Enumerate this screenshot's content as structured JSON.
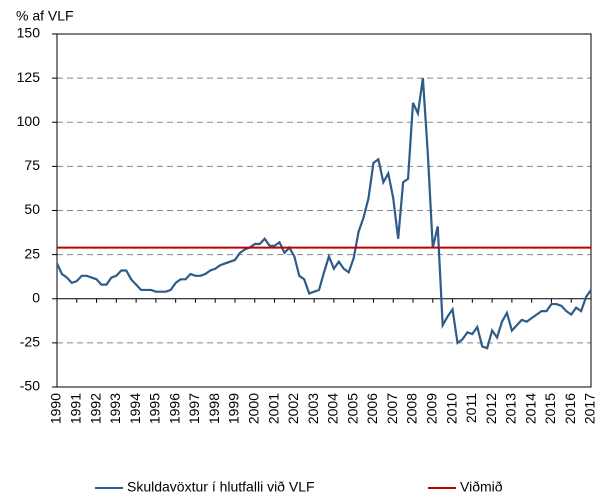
{
  "chart_data": {
    "type": "line",
    "y_label": "% af VLF",
    "xlim": [
      1990,
      2017
    ],
    "xticks": [
      1990,
      1991,
      1992,
      1993,
      1994,
      1995,
      1996,
      1997,
      1998,
      1999,
      2000,
      2001,
      2002,
      2003,
      2004,
      2005,
      2006,
      2007,
      2008,
      2009,
      2010,
      2011,
      2012,
      2013,
      2014,
      2015,
      2016,
      2017
    ],
    "ylim": [
      -50,
      150
    ],
    "yticks": [
      -50,
      -25,
      0,
      25,
      50,
      75,
      100,
      125,
      150
    ],
    "grid": true,
    "legend": "bottom",
    "series": [
      {
        "name": "Skuldavöxtur í hlutfalli við VLF",
        "color": "#2e5c8a",
        "x": [
          1990,
          1990.25,
          1990.5,
          1990.75,
          1991,
          1991.25,
          1991.5,
          1991.75,
          1992,
          1992.25,
          1992.5,
          1992.75,
          1993,
          1993.25,
          1993.5,
          1993.75,
          1994,
          1994.25,
          1994.5,
          1994.75,
          1995,
          1995.25,
          1995.5,
          1995.75,
          1996,
          1996.25,
          1996.5,
          1996.75,
          1997,
          1997.25,
          1997.5,
          1997.75,
          1998,
          1998.25,
          1998.5,
          1998.75,
          1999,
          1999.25,
          1999.5,
          1999.75,
          2000,
          2000.25,
          2000.5,
          2000.75,
          2001,
          2001.25,
          2001.5,
          2001.75,
          2002,
          2002.25,
          2002.5,
          2002.75,
          2003,
          2003.25,
          2003.5,
          2003.75,
          2004,
          2004.25,
          2004.5,
          2004.75,
          2005,
          2005.25,
          2005.5,
          2005.75,
          2006,
          2006.25,
          2006.5,
          2006.75,
          2007,
          2007.25,
          2007.5,
          2007.75,
          2008,
          2008.25,
          2008.5,
          2008.75,
          2009,
          2009.25,
          2009.5,
          2009.75,
          2010,
          2010.25,
          2010.5,
          2010.75,
          2011,
          2011.25,
          2011.5,
          2011.75,
          2012,
          2012.25,
          2012.5,
          2012.75,
          2013,
          2013.25,
          2013.5,
          2013.75,
          2014,
          2014.25,
          2014.5,
          2014.75,
          2015,
          2015.25,
          2015.5,
          2015.75,
          2016,
          2016.25,
          2016.5,
          2016.75,
          2017
        ],
        "values": [
          20,
          14,
          12,
          9,
          10,
          13,
          13,
          12,
          11,
          8,
          8,
          12,
          13,
          16,
          16,
          11,
          8,
          5,
          5,
          5,
          4,
          4,
          4,
          5,
          9,
          11,
          11,
          14,
          13,
          13,
          14,
          16,
          17,
          19,
          20,
          21,
          22,
          26,
          28,
          29,
          31,
          31,
          34,
          30,
          30,
          32,
          26,
          29,
          24,
          13,
          11,
          3,
          4,
          5,
          15,
          24,
          17,
          21,
          17,
          15,
          23,
          38,
          46,
          57,
          77,
          79,
          66,
          71,
          57,
          34,
          66,
          68,
          111,
          105,
          125,
          82,
          29,
          41,
          -15,
          -10,
          -6,
          -25,
          -23,
          -19,
          -20,
          -16,
          -27,
          -28,
          -18,
          -22,
          -13,
          -8,
          -18,
          -15,
          -12,
          -13,
          -11,
          -9,
          -7,
          -7,
          -3,
          -3,
          -4,
          -7,
          -9,
          -5,
          -7,
          1,
          5
        ]
      },
      {
        "name": "Viðmið",
        "color": "#c00000",
        "x": [
          1990,
          2017
        ],
        "values": [
          29,
          29
        ]
      }
    ]
  }
}
